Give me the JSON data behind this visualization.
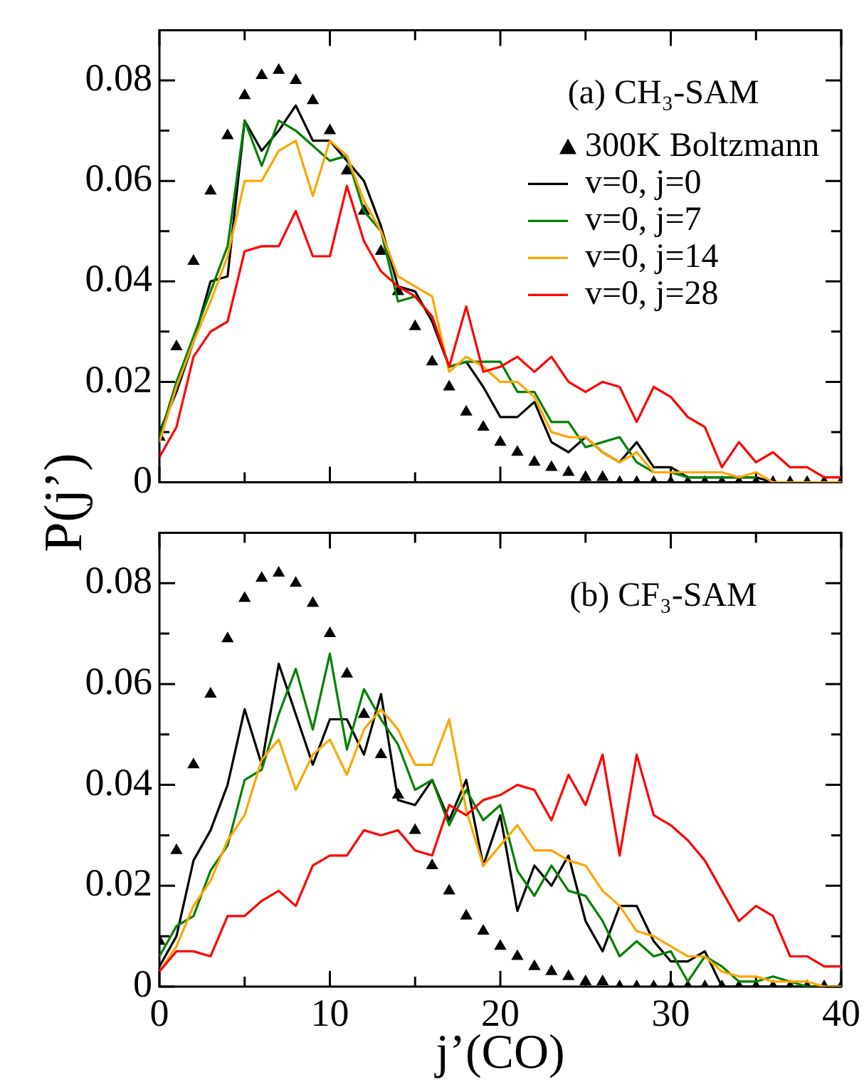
{
  "chart_data": [
    {
      "type": "line",
      "ylabel": "P(j’)",
      "annotations": [
        "(a) CH₃-SAM"
      ],
      "legend": "top right",
      "tick_labels": "y",
      "xlim": [
        0,
        40
      ],
      "xticks": [
        0,
        {
          "value": 5,
          "label": null
        },
        10,
        {
          "value": 15,
          "label": null
        },
        20,
        {
          "value": 25,
          "label": null
        },
        30,
        {
          "value": 35,
          "label": null
        },
        40
      ],
      "ylim": [
        0,
        0.09
      ],
      "yticks": [
        0,
        {
          "value": 0.01,
          "label": null
        },
        0.02,
        {
          "value": 0.03,
          "label": null
        },
        0.04,
        {
          "value": 0.05,
          "label": null
        },
        0.06,
        {
          "value": 0.07,
          "label": null
        },
        0.08,
        {
          "value": 0.09,
          "label": null
        }
      ],
      "x": [
        0,
        1,
        2,
        3,
        4,
        5,
        6,
        7,
        8,
        9,
        10,
        11,
        12,
        13,
        14,
        15,
        16,
        17,
        18,
        19,
        20,
        21,
        22,
        23,
        24,
        25,
        26,
        27,
        28,
        29,
        30,
        31,
        32,
        33,
        34,
        35,
        36,
        37,
        38,
        39,
        40
      ],
      "series": [
        {
          "name": "300K Boltzmann",
          "type": "scatter",
          "marker": "triangle",
          "color": "#000000",
          "values": [
            0.009,
            0.027,
            0.044,
            0.058,
            0.069,
            0.077,
            0.081,
            0.082,
            0.08,
            0.076,
            0.07,
            0.062,
            0.054,
            0.046,
            0.038,
            0.031,
            0.024,
            0.019,
            0.014,
            0.011,
            0.008,
            0.006,
            0.004,
            0.003,
            0.002,
            0.001,
            0.001,
            0,
            0,
            0,
            0,
            0,
            0,
            0,
            0,
            0,
            0,
            0,
            0,
            0,
            0
          ]
        },
        {
          "name": "v=0, j=0",
          "color": "#000000",
          "values": [
            0.01,
            0.018,
            0.028,
            0.04,
            0.041,
            0.072,
            0.066,
            0.07,
            0.075,
            0.068,
            0.068,
            0.064,
            0.06,
            0.051,
            0.039,
            0.038,
            0.032,
            0.023,
            0.024,
            0.019,
            0.013,
            0.013,
            0.016,
            0.008,
            0.006,
            0.009,
            0.006,
            0.004,
            0.008,
            0.003,
            0.003,
            0.001,
            0.001,
            0.001,
            0.001,
            0.001,
            0,
            0,
            0,
            0,
            0
          ]
        },
        {
          "name": "v=0, j=7",
          "color": "#008000",
          "values": [
            0.009,
            0.02,
            0.029,
            0.038,
            0.047,
            0.072,
            0.063,
            0.072,
            0.07,
            0.067,
            0.064,
            0.065,
            0.054,
            0.05,
            0.036,
            0.037,
            0.033,
            0.023,
            0.024,
            0.024,
            0.024,
            0.018,
            0.018,
            0.012,
            0.012,
            0.007,
            0.008,
            0.009,
            0.004,
            0.002,
            0.002,
            0.001,
            0.001,
            0.001,
            0.001,
            0.001,
            null,
            null,
            null,
            null,
            null
          ]
        },
        {
          "name": "v=0, j=14",
          "color": "#ffa500",
          "values": [
            0.008,
            0.019,
            0.028,
            0.036,
            0.045,
            0.06,
            0.06,
            0.066,
            0.068,
            0.057,
            0.068,
            0.065,
            0.056,
            0.05,
            0.041,
            0.039,
            0.037,
            0.022,
            0.025,
            0.023,
            0.02,
            0.02,
            0.017,
            0.01,
            0.009,
            0.009,
            0.006,
            0.004,
            0.006,
            0.002,
            0.002,
            0.002,
            0.002,
            0.002,
            0.001,
            0.002,
            0,
            0,
            0,
            0,
            0
          ]
        },
        {
          "name": "v=0, j=28",
          "color": "#ff0000",
          "values": [
            0.005,
            0.011,
            0.025,
            0.03,
            0.032,
            0.046,
            0.047,
            0.047,
            0.054,
            0.045,
            0.045,
            0.059,
            0.048,
            0.042,
            0.039,
            0.037,
            0.033,
            0.023,
            0.035,
            0.022,
            0.023,
            0.025,
            0.022,
            0.025,
            0.02,
            0.018,
            0.02,
            0.019,
            0.012,
            0.019,
            0.017,
            0.013,
            0.011,
            0.003,
            0.008,
            0.004,
            0.006,
            0.003,
            0.003,
            0.001,
            0.001
          ]
        }
      ]
    },
    {
      "type": "line",
      "xlabel": "j’(CO)",
      "annotations": [
        "(b) CF₃-SAM"
      ],
      "xlim": [
        0,
        40
      ],
      "xticks": [
        0,
        {
          "value": 5,
          "label": null
        },
        10,
        {
          "value": 15,
          "label": null
        },
        20,
        {
          "value": 25,
          "label": null
        },
        30,
        {
          "value": 35,
          "label": null
        },
        40
      ],
      "ylim": [
        0,
        0.09
      ],
      "yticks": [
        0,
        {
          "value": 0.01,
          "label": null
        },
        0.02,
        {
          "value": 0.03,
          "label": null
        },
        0.04,
        {
          "value": 0.05,
          "label": null
        },
        0.06,
        {
          "value": 0.07,
          "label": null
        },
        0.08,
        {
          "value": 0.09,
          "label": null
        }
      ],
      "x": [
        0,
        1,
        2,
        3,
        4,
        5,
        6,
        7,
        8,
        9,
        10,
        11,
        12,
        13,
        14,
        15,
        16,
        17,
        18,
        19,
        20,
        21,
        22,
        23,
        24,
        25,
        26,
        27,
        28,
        29,
        30,
        31,
        32,
        33,
        34,
        35,
        36,
        37,
        38,
        39,
        40
      ],
      "series": [
        {
          "type": "scatter",
          "marker": "triangle",
          "color": "#000000",
          "values": [
            0.009,
            0.027,
            0.044,
            0.058,
            0.069,
            0.077,
            0.081,
            0.082,
            0.08,
            0.076,
            0.07,
            0.062,
            0.054,
            0.046,
            0.038,
            0.031,
            0.024,
            0.019,
            0.014,
            0.011,
            0.008,
            0.006,
            0.004,
            0.003,
            0.002,
            0.001,
            0.001,
            0,
            0,
            0,
            0,
            0,
            0,
            0,
            0,
            0,
            0,
            0,
            0,
            0,
            0
          ]
        },
        {
          "color": "#000000",
          "values": [
            0.004,
            0.01,
            0.025,
            0.031,
            0.04,
            0.055,
            0.044,
            0.064,
            0.054,
            0.044,
            0.053,
            0.053,
            0.046,
            0.058,
            0.037,
            0.036,
            0.041,
            0.033,
            0.041,
            0.024,
            0.034,
            0.015,
            0.024,
            0.02,
            0.026,
            0.013,
            0.007,
            0.016,
            0.016,
            0.009,
            0.005,
            0.005,
            0.007,
            0,
            0,
            0,
            0,
            0,
            0,
            0,
            0
          ]
        },
        {
          "color": "#008000",
          "values": [
            0.006,
            0.012,
            0.014,
            0.023,
            0.028,
            0.041,
            0.043,
            0.054,
            0.063,
            0.051,
            0.066,
            0.047,
            0.059,
            0.053,
            0.048,
            0.039,
            0.041,
            0.032,
            0.039,
            0.033,
            0.036,
            0.023,
            0.018,
            0.024,
            0.019,
            0.018,
            0.013,
            0.006,
            0.009,
            0.006,
            0.007,
            0.001,
            0.006,
            0.004,
            0.001,
            0.001,
            0.002,
            0.001,
            0,
            0,
            0
          ]
        },
        {
          "color": "#ffa500",
          "values": [
            0.003,
            0.008,
            0.016,
            0.021,
            0.029,
            0.034,
            0.045,
            0.049,
            0.039,
            0.046,
            0.049,
            0.042,
            0.051,
            0.055,
            0.051,
            0.044,
            0.044,
            0.053,
            0.035,
            0.024,
            0.028,
            0.032,
            0.027,
            0.027,
            0.025,
            0.024,
            0.019,
            0.016,
            0.011,
            0.01,
            0.008,
            0.006,
            0.006,
            0.003,
            0.002,
            0.002,
            0.001,
            0.001,
            0.001,
            0,
            0
          ]
        },
        {
          "color": "#ff0000",
          "values": [
            0.003,
            0.007,
            0.007,
            0.006,
            0.014,
            0.014,
            0.017,
            0.019,
            0.016,
            0.024,
            0.026,
            0.026,
            0.031,
            0.03,
            0.031,
            0.027,
            0.026,
            0.036,
            0.034,
            0.037,
            0.038,
            0.04,
            0.039,
            0.033,
            0.042,
            0.036,
            0.046,
            0.026,
            0.046,
            0.034,
            0.032,
            0.029,
            0.025,
            0.019,
            0.013,
            0.016,
            0.014,
            0.006,
            0.006,
            0.004,
            0.004
          ]
        }
      ]
    }
  ]
}
